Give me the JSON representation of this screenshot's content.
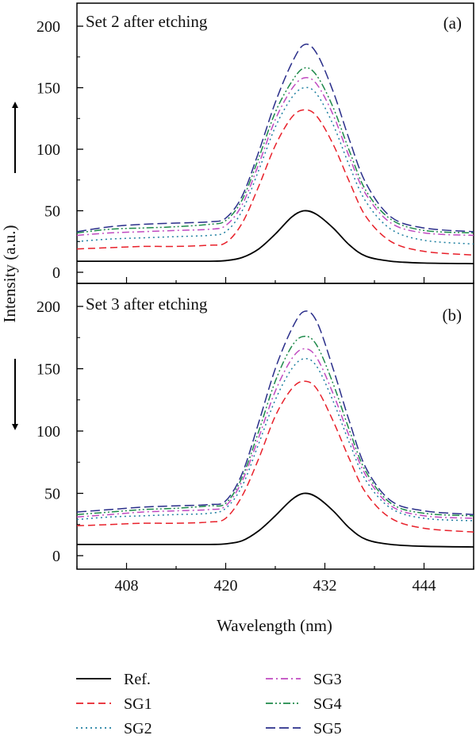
{
  "figure": {
    "ylabel": "Intensity (a.u.)",
    "xlabel": "Wavelength (nm)"
  },
  "legend": [
    {
      "label": "Ref.",
      "color": "#000000",
      "style": "solid"
    },
    {
      "label": "SG1",
      "color": "#e8202a",
      "style": "dash"
    },
    {
      "label": "SG2",
      "color": "#1e7fa0",
      "style": "dot"
    },
    {
      "label": "SG3",
      "color": "#c04ac0",
      "style": "dashdot"
    },
    {
      "label": "SG4",
      "color": "#1e8a4a",
      "style": "dashdotdot"
    },
    {
      "label": "SG5",
      "color": "#2a2e8a",
      "style": "longdash"
    }
  ],
  "chart_data": [
    {
      "type": "line",
      "panel_title": "Set 2 after etching",
      "panel_label": "(a)",
      "arrow": "up",
      "x_range": [
        402,
        450
      ],
      "ylim": [
        0,
        210
      ],
      "xticks": [
        408,
        420,
        432,
        444
      ],
      "yticks": [
        0,
        50,
        100,
        150,
        200
      ],
      "series": [
        {
          "name": "Ref.",
          "x": [
            402,
            408,
            414,
            418,
            420,
            422,
            424,
            426,
            428,
            429.5,
            431,
            433,
            435,
            437,
            440,
            444,
            450
          ],
          "y": [
            9,
            9,
            9,
            9,
            9.5,
            12,
            19,
            31,
            45,
            50,
            47,
            36,
            22,
            13,
            9,
            7.5,
            7
          ]
        },
        {
          "name": "SG1",
          "x": [
            402,
            406,
            410,
            414,
            418,
            420,
            422,
            424,
            426,
            428,
            429.5,
            431,
            433,
            435,
            437,
            440,
            444,
            450
          ],
          "y": [
            19,
            20,
            21,
            21,
            22,
            24,
            40,
            70,
            103,
            126,
            132,
            127,
            104,
            73,
            45,
            25,
            17,
            14
          ]
        },
        {
          "name": "SG2",
          "x": [
            402,
            406,
            410,
            414,
            418,
            420,
            422,
            424,
            426,
            428,
            429.5,
            431,
            433,
            435,
            437,
            440,
            444,
            450
          ],
          "y": [
            25,
            27,
            28,
            29,
            30,
            33,
            50,
            83,
            118,
            142,
            150,
            145,
            120,
            86,
            57,
            35,
            26,
            23
          ]
        },
        {
          "name": "SG3",
          "x": [
            402,
            406,
            410,
            414,
            418,
            420,
            422,
            424,
            426,
            428,
            429.5,
            431,
            433,
            435,
            437,
            440,
            444,
            450
          ],
          "y": [
            30,
            32,
            33,
            34,
            35,
            38,
            55,
            88,
            124,
            149,
            158,
            153,
            128,
            93,
            63,
            40,
            32,
            30
          ]
        },
        {
          "name": "SG4",
          "x": [
            402,
            406,
            410,
            414,
            418,
            420,
            422,
            424,
            426,
            428,
            429.5,
            431,
            433,
            435,
            437,
            440,
            444,
            450
          ],
          "y": [
            32,
            35,
            36,
            37,
            39,
            42,
            59,
            93,
            130,
            155,
            166,
            160,
            134,
            98,
            66,
            43,
            34,
            32
          ]
        },
        {
          "name": "SG5",
          "x": [
            402,
            406,
            410,
            414,
            418,
            420,
            422,
            424,
            426,
            428,
            429.5,
            431,
            433,
            435,
            437,
            440,
            444,
            450
          ],
          "y": [
            33,
            37,
            39,
            40,
            41,
            44,
            62,
            98,
            138,
            170,
            185,
            178,
            147,
            107,
            72,
            45,
            36,
            33
          ]
        }
      ]
    },
    {
      "type": "line",
      "panel_title": "Set 3 after etching",
      "panel_label": "(b)",
      "arrow": "down",
      "x_range": [
        402,
        450
      ],
      "ylim": [
        -15,
        210
      ],
      "xticks": [
        408,
        420,
        432,
        444
      ],
      "yticks": [
        0,
        50,
        100,
        150,
        200
      ],
      "series": [
        {
          "name": "Ref.",
          "x": [
            402,
            408,
            414,
            418,
            420,
            422,
            424,
            426,
            428,
            429.5,
            431,
            433,
            435,
            437,
            440,
            444,
            450
          ],
          "y": [
            9,
            9,
            9,
            9,
            9.5,
            12,
            20,
            32,
            45,
            50,
            47,
            36,
            22,
            13,
            9,
            7.5,
            7
          ]
        },
        {
          "name": "SG1",
          "x": [
            402,
            406,
            410,
            414,
            418,
            420,
            422,
            424,
            426,
            428,
            429.5,
            431,
            433,
            435,
            437,
            440,
            444,
            450
          ],
          "y": [
            24,
            25,
            26,
            26,
            27,
            30,
            48,
            78,
            112,
            134,
            140,
            134,
            108,
            77,
            50,
            30,
            22,
            19
          ]
        },
        {
          "name": "SG2",
          "x": [
            402,
            406,
            410,
            414,
            418,
            420,
            422,
            424,
            426,
            428,
            429.5,
            431,
            433,
            435,
            437,
            440,
            444,
            450
          ],
          "y": [
            29,
            31,
            32,
            33,
            34,
            38,
            56,
            90,
            125,
            150,
            158,
            152,
            124,
            90,
            60,
            38,
            30,
            28
          ]
        },
        {
          "name": "SG3",
          "x": [
            402,
            406,
            410,
            414,
            418,
            420,
            422,
            424,
            426,
            428,
            429.5,
            431,
            433,
            435,
            437,
            440,
            444,
            450
          ],
          "y": [
            31,
            33,
            35,
            36,
            37,
            40,
            60,
            95,
            132,
            158,
            166,
            159,
            130,
            95,
            64,
            40,
            32,
            30
          ]
        },
        {
          "name": "SG4",
          "x": [
            402,
            406,
            410,
            414,
            418,
            420,
            422,
            424,
            426,
            428,
            429.5,
            431,
            433,
            435,
            437,
            440,
            444,
            450
          ],
          "y": [
            33,
            35,
            37,
            38,
            40,
            42,
            63,
            100,
            140,
            168,
            176,
            169,
            138,
            100,
            67,
            42,
            34,
            32
          ]
        },
        {
          "name": "SG5",
          "x": [
            402,
            406,
            410,
            414,
            418,
            420,
            422,
            424,
            426,
            428,
            429.5,
            431,
            433,
            435,
            437,
            440,
            444,
            450
          ],
          "y": [
            35,
            37,
            39,
            40,
            41,
            44,
            66,
            107,
            150,
            182,
            196,
            188,
            150,
            107,
            70,
            44,
            36,
            33
          ]
        }
      ]
    }
  ]
}
